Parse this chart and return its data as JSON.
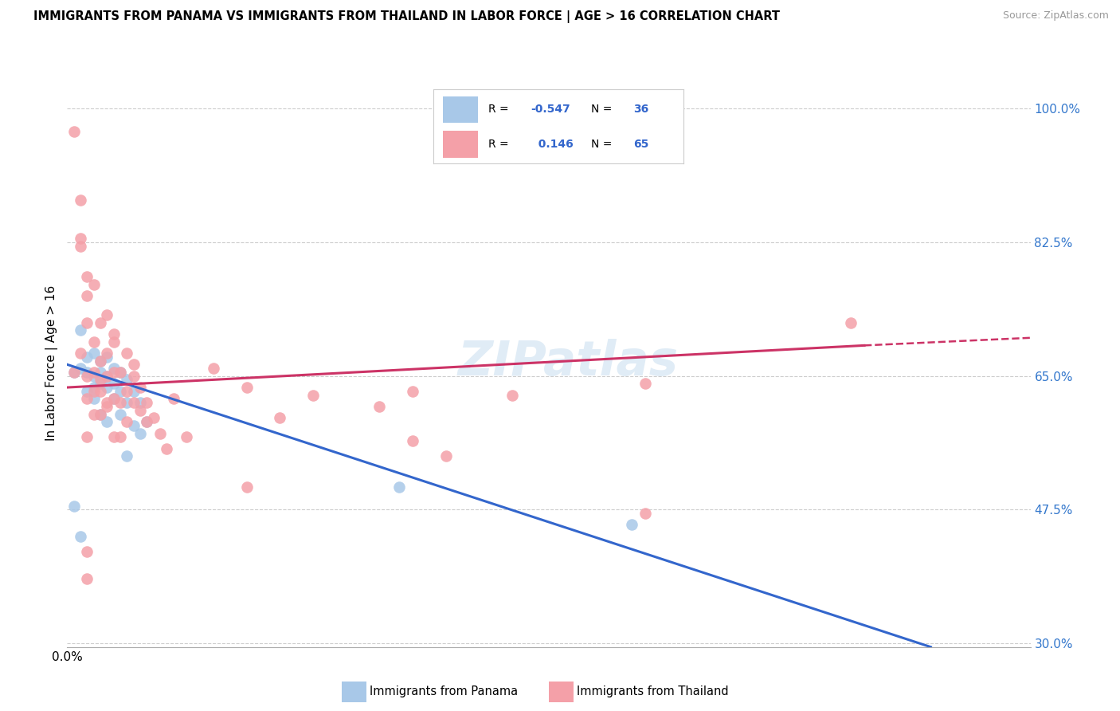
{
  "title": "IMMIGRANTS FROM PANAMA VS IMMIGRANTS FROM THAILAND IN LABOR FORCE | AGE > 16 CORRELATION CHART",
  "source": "Source: ZipAtlas.com",
  "ylabel": "In Labor Force | Age > 16",
  "xlim": [
    0.0,
    0.145
  ],
  "ylim": [
    0.295,
    1.04
  ],
  "yticks": [
    0.3,
    0.475,
    0.65,
    0.825,
    1.0
  ],
  "ytick_labels": [
    "30.0%",
    "47.5%",
    "65.0%",
    "82.5%",
    "100.0%"
  ],
  "blue_color": "#a8c8e8",
  "pink_color": "#f4a0a8",
  "blue_line_color": "#3366cc",
  "pink_line_color": "#cc3366",
  "watermark": "ZIPatlas",
  "panama_scatter": [
    [
      0.001,
      0.655
    ],
    [
      0.002,
      0.66
    ],
    [
      0.002,
      0.71
    ],
    [
      0.003,
      0.675
    ],
    [
      0.003,
      0.63
    ],
    [
      0.003,
      0.655
    ],
    [
      0.004,
      0.68
    ],
    [
      0.004,
      0.65
    ],
    [
      0.004,
      0.635
    ],
    [
      0.004,
      0.62
    ],
    [
      0.005,
      0.67
    ],
    [
      0.005,
      0.655
    ],
    [
      0.005,
      0.64
    ],
    [
      0.005,
      0.6
    ],
    [
      0.006,
      0.675
    ],
    [
      0.006,
      0.65
    ],
    [
      0.006,
      0.635
    ],
    [
      0.006,
      0.59
    ],
    [
      0.007,
      0.66
    ],
    [
      0.007,
      0.64
    ],
    [
      0.007,
      0.62
    ],
    [
      0.008,
      0.655
    ],
    [
      0.008,
      0.63
    ],
    [
      0.008,
      0.6
    ],
    [
      0.009,
      0.645
    ],
    [
      0.009,
      0.615
    ],
    [
      0.009,
      0.545
    ],
    [
      0.01,
      0.63
    ],
    [
      0.01,
      0.585
    ],
    [
      0.011,
      0.615
    ],
    [
      0.011,
      0.575
    ],
    [
      0.012,
      0.59
    ],
    [
      0.05,
      0.505
    ],
    [
      0.085,
      0.455
    ],
    [
      0.002,
      0.44
    ],
    [
      0.001,
      0.48
    ]
  ],
  "thailand_scatter": [
    [
      0.001,
      0.655
    ],
    [
      0.001,
      0.97
    ],
    [
      0.002,
      0.88
    ],
    [
      0.002,
      0.82
    ],
    [
      0.002,
      0.83
    ],
    [
      0.002,
      0.68
    ],
    [
      0.003,
      0.65
    ],
    [
      0.003,
      0.62
    ],
    [
      0.003,
      0.78
    ],
    [
      0.003,
      0.72
    ],
    [
      0.003,
      0.755
    ],
    [
      0.004,
      0.63
    ],
    [
      0.004,
      0.6
    ],
    [
      0.004,
      0.77
    ],
    [
      0.004,
      0.695
    ],
    [
      0.004,
      0.655
    ],
    [
      0.005,
      0.63
    ],
    [
      0.005,
      0.6
    ],
    [
      0.005,
      0.72
    ],
    [
      0.005,
      0.67
    ],
    [
      0.005,
      0.645
    ],
    [
      0.006,
      0.615
    ],
    [
      0.006,
      0.73
    ],
    [
      0.006,
      0.68
    ],
    [
      0.006,
      0.65
    ],
    [
      0.006,
      0.61
    ],
    [
      0.007,
      0.57
    ],
    [
      0.007,
      0.695
    ],
    [
      0.007,
      0.655
    ],
    [
      0.007,
      0.62
    ],
    [
      0.007,
      0.705
    ],
    [
      0.008,
      0.655
    ],
    [
      0.008,
      0.615
    ],
    [
      0.008,
      0.57
    ],
    [
      0.009,
      0.68
    ],
    [
      0.009,
      0.63
    ],
    [
      0.009,
      0.59
    ],
    [
      0.01,
      0.665
    ],
    [
      0.01,
      0.615
    ],
    [
      0.01,
      0.65
    ],
    [
      0.011,
      0.605
    ],
    [
      0.011,
      0.635
    ],
    [
      0.012,
      0.59
    ],
    [
      0.012,
      0.615
    ],
    [
      0.013,
      0.595
    ],
    [
      0.014,
      0.575
    ],
    [
      0.015,
      0.555
    ],
    [
      0.016,
      0.62
    ],
    [
      0.018,
      0.57
    ],
    [
      0.022,
      0.66
    ],
    [
      0.027,
      0.635
    ],
    [
      0.027,
      0.505
    ],
    [
      0.032,
      0.595
    ],
    [
      0.037,
      0.625
    ],
    [
      0.047,
      0.61
    ],
    [
      0.052,
      0.565
    ],
    [
      0.057,
      0.545
    ],
    [
      0.067,
      0.625
    ],
    [
      0.087,
      0.64
    ],
    [
      0.003,
      0.57
    ],
    [
      0.118,
      0.72
    ],
    [
      0.003,
      0.42
    ],
    [
      0.087,
      0.47
    ],
    [
      0.003,
      0.385
    ],
    [
      0.052,
      0.63
    ]
  ],
  "blue_line": [
    [
      0.0,
      0.665
    ],
    [
      0.13,
      0.295
    ]
  ],
  "pink_line_solid": [
    [
      0.0,
      0.635
    ],
    [
      0.12,
      0.69
    ]
  ],
  "pink_line_dash": [
    [
      0.12,
      0.69
    ],
    [
      0.145,
      0.7
    ]
  ]
}
